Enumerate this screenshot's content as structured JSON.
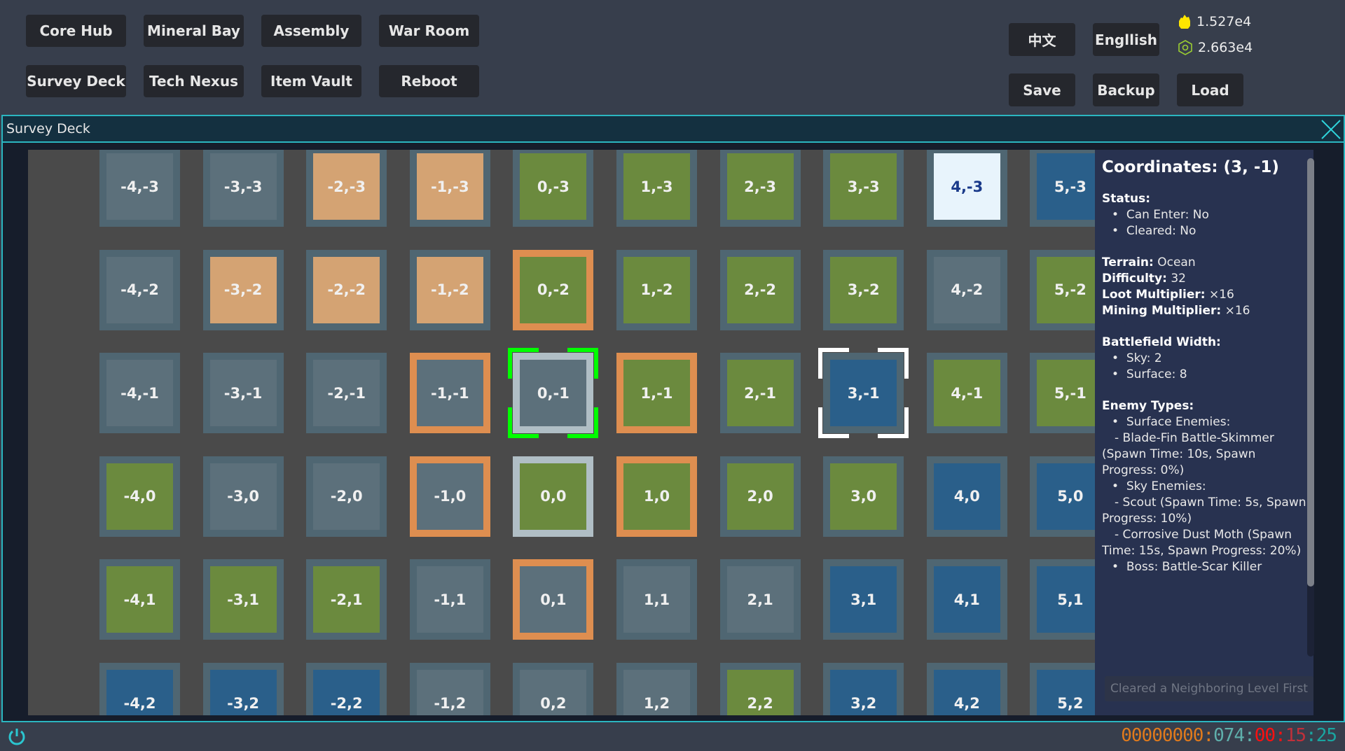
{
  "nav": {
    "buttons": [
      "Core Hub",
      "Mineral Bay",
      "Assembly",
      "War Room",
      "Survey Deck",
      "Tech Nexus",
      "Item Vault",
      "Reboot"
    ]
  },
  "lang": {
    "chinese": "中文",
    "english": "Engllish"
  },
  "file": {
    "save": "Save",
    "backup": "Backup",
    "load": "Load"
  },
  "resources": [
    {
      "icon": "flame-icon",
      "value": "1.527e4",
      "color": "#ffe600"
    },
    {
      "icon": "hex-nut-icon",
      "value": "2.663e4",
      "color": "#9acd32"
    }
  ],
  "window": {
    "title": "Survey Deck"
  },
  "colors": {
    "gray": "#5c707b",
    "tan": "#d4a373",
    "green": "#6b8a3e",
    "blue": "#2a5f8a",
    "light": "#e8f4fc",
    "border_default": "#4f6672",
    "border_orange": "#de8e50",
    "border_silver": "#b0bec5",
    "select_green": "#00ff00",
    "select_white": "#ffffff",
    "accent": "#2bb6c0"
  },
  "map": {
    "rows": [
      {
        "tiles": [
          {
            "label": "-4,-3",
            "fill": "gray"
          },
          {
            "label": "-3,-3",
            "fill": "gray"
          },
          {
            "label": "-2,-3",
            "fill": "tan"
          },
          {
            "label": "-1,-3",
            "fill": "tan"
          },
          {
            "label": "0,-3",
            "fill": "green"
          },
          {
            "label": "1,-3",
            "fill": "green"
          },
          {
            "label": "2,-3",
            "fill": "green"
          },
          {
            "label": "3,-3",
            "fill": "green"
          },
          {
            "label": "4,-3",
            "fill": "light"
          },
          {
            "label": "5,-3",
            "fill": "blue"
          }
        ]
      },
      {
        "tiles": [
          {
            "label": "-4,-2",
            "fill": "gray"
          },
          {
            "label": "-3,-2",
            "fill": "tan"
          },
          {
            "label": "-2,-2",
            "fill": "tan"
          },
          {
            "label": "-1,-2",
            "fill": "tan"
          },
          {
            "label": "0,-2",
            "fill": "green",
            "border": "orange"
          },
          {
            "label": "1,-2",
            "fill": "green"
          },
          {
            "label": "2,-2",
            "fill": "green"
          },
          {
            "label": "3,-2",
            "fill": "green"
          },
          {
            "label": "4,-2",
            "fill": "gray"
          },
          {
            "label": "5,-2",
            "fill": "green"
          }
        ]
      },
      {
        "tiles": [
          {
            "label": "-4,-1",
            "fill": "gray"
          },
          {
            "label": "-3,-1",
            "fill": "gray"
          },
          {
            "label": "-2,-1",
            "fill": "gray"
          },
          {
            "label": "-1,-1",
            "fill": "gray",
            "border": "orange"
          },
          {
            "label": "0,-1",
            "fill": "gray",
            "border": "silver",
            "marker": "current"
          },
          {
            "label": "1,-1",
            "fill": "green",
            "border": "orange"
          },
          {
            "label": "2,-1",
            "fill": "green"
          },
          {
            "label": "3,-1",
            "fill": "blue",
            "marker": "selected"
          },
          {
            "label": "4,-1",
            "fill": "green"
          },
          {
            "label": "5,-1",
            "fill": "green"
          }
        ]
      },
      {
        "tiles": [
          {
            "label": "-4,0",
            "fill": "green"
          },
          {
            "label": "-3,0",
            "fill": "gray"
          },
          {
            "label": "-2,0",
            "fill": "gray"
          },
          {
            "label": "-1,0",
            "fill": "gray",
            "border": "orange"
          },
          {
            "label": "0,0",
            "fill": "green",
            "border": "silver"
          },
          {
            "label": "1,0",
            "fill": "green",
            "border": "orange"
          },
          {
            "label": "2,0",
            "fill": "green"
          },
          {
            "label": "3,0",
            "fill": "green"
          },
          {
            "label": "4,0",
            "fill": "blue"
          },
          {
            "label": "5,0",
            "fill": "blue"
          }
        ]
      },
      {
        "tiles": [
          {
            "label": "-4,1",
            "fill": "green"
          },
          {
            "label": "-3,1",
            "fill": "green"
          },
          {
            "label": "-2,1",
            "fill": "green"
          },
          {
            "label": "-1,1",
            "fill": "gray"
          },
          {
            "label": "0,1",
            "fill": "gray",
            "border": "orange"
          },
          {
            "label": "1,1",
            "fill": "gray"
          },
          {
            "label": "2,1",
            "fill": "gray"
          },
          {
            "label": "3,1",
            "fill": "blue"
          },
          {
            "label": "4,1",
            "fill": "blue"
          },
          {
            "label": "5,1",
            "fill": "blue"
          }
        ]
      },
      {
        "tiles": [
          {
            "label": "-4,2",
            "fill": "blue"
          },
          {
            "label": "-3,2",
            "fill": "blue"
          },
          {
            "label": "-2,2",
            "fill": "blue"
          },
          {
            "label": "-1,2",
            "fill": "gray"
          },
          {
            "label": "0,2",
            "fill": "gray"
          },
          {
            "label": "1,2",
            "fill": "gray"
          },
          {
            "label": "2,2",
            "fill": "green"
          },
          {
            "label": "3,2",
            "fill": "blue"
          },
          {
            "label": "4,2",
            "fill": "blue"
          },
          {
            "label": "5,2",
            "fill": "blue"
          }
        ]
      }
    ]
  },
  "info": {
    "title": "Coordinates: (3, -1)",
    "status_label": "Status:",
    "can_enter": "Can Enter: No",
    "cleared": "Cleared: No",
    "terrain_label": "Terrain:",
    "terrain": "Ocean",
    "difficulty_label": "Difficulty:",
    "difficulty": "32",
    "loot_label": "Loot Multiplier:",
    "loot": "×16",
    "mining_label": "Mining Multiplier:",
    "mining": "×16",
    "width_label": "Battlefield Width:",
    "sky": "Sky: 2",
    "surface": "Surface: 8",
    "enemy_label": "Enemy Types:",
    "surface_enemies": "Surface Enemies:",
    "surface_1": "- Blade-Fin Battle-Skimmer (Spawn Time: 10s, Spawn Progress: 0%)",
    "sky_enemies": "Sky Enemies:",
    "sky_1": "- Scout (Spawn Time: 5s, Spawn Progress: 10%)",
    "sky_2": "- Corrosive Dust Moth (Spawn Time: 15s, Spawn Progress: 20%)",
    "boss": "Boss: Battle-Scar Killer",
    "action": "Cleared a Neighboring Level First"
  },
  "timer": {
    "segments": [
      {
        "text": "00000000",
        "color": "#e07a1c"
      },
      {
        "text": ":",
        "color": "#e07a1c"
      },
      {
        "text": "074",
        "color": "#5fb0ac"
      },
      {
        "text": ":",
        "color": "#5fb0ac"
      },
      {
        "text": "00",
        "color": "#ff1010"
      },
      {
        "text": ":",
        "color": "#ff1010"
      },
      {
        "text": "15",
        "color": "#c0303a"
      },
      {
        "text": ":",
        "color": "#1aa5a0"
      },
      {
        "text": "25",
        "color": "#1aa5a0"
      }
    ]
  }
}
